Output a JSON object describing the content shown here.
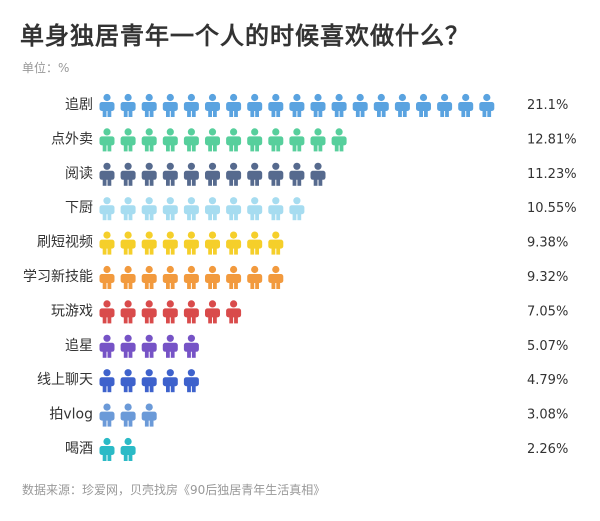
{
  "title": "单身独居青年一个人的时候喜欢做什么？",
  "unit": "单位：%",
  "source": "数据来源：珍爱网，贝壳找房《90后独居青年生活真相》",
  "chart_data": {
    "type": "bar",
    "style": "pictogram",
    "title": "单身独居青年一个人的时候喜欢做什么？",
    "unit": "%",
    "categories": [
      "追剧",
      "点外卖",
      "阅读",
      "下厨",
      "刷短视频",
      "学习新技能",
      "玩游戏",
      "追星",
      "线上聊天",
      "拍vlog",
      "喝酒"
    ],
    "values": [
      21.1,
      12.81,
      11.23,
      10.55,
      9.38,
      9.32,
      7.05,
      5.07,
      4.79,
      3.08,
      2.26
    ],
    "value_labels": [
      "21.1%",
      "12.81%",
      "11.23%",
      "10.55%",
      "9.38%",
      "9.32%",
      "7.05%",
      "5.07%",
      "4.79%",
      "3.08%",
      "2.26%"
    ],
    "icon_counts": [
      19,
      12,
      11,
      10,
      9,
      9,
      7,
      5,
      5,
      3,
      2
    ],
    "colors": [
      "#5aa3e0",
      "#57cf9c",
      "#566a8e",
      "#a6dcf0",
      "#f5cf2a",
      "#f29a3e",
      "#d94b4b",
      "#7653c6",
      "#3e62cc",
      "#6b9ad8",
      "#2bbac6"
    ]
  }
}
